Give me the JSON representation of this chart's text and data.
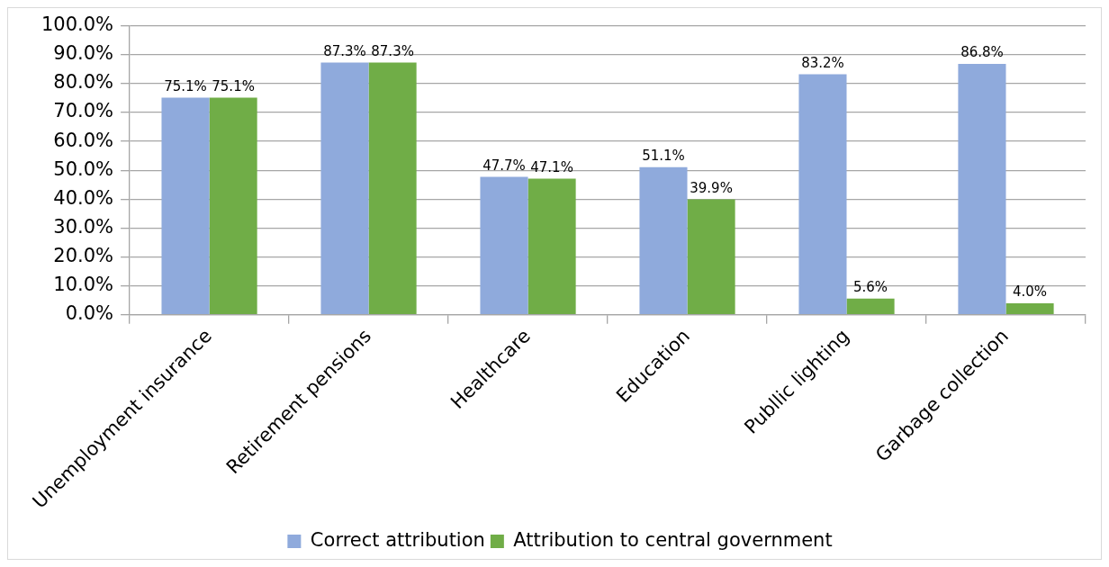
{
  "chart_data": {
    "type": "bar",
    "categories": [
      "Unemployment insurance",
      "Retirement pensions",
      "Healthcare",
      "Education",
      "Publlic lighting",
      "Garbage collection"
    ],
    "series": [
      {
        "name": "Correct attribution",
        "color": "#8faadc",
        "values": [
          75.1,
          87.3,
          47.7,
          51.1,
          83.2,
          86.8
        ],
        "value_labels": [
          "75.1%",
          "87.3%",
          "47.7%",
          "51.1%",
          "83.2%",
          "86.8%"
        ]
      },
      {
        "name": "Attribution to central government",
        "color": "#70ad47",
        "values": [
          75.1,
          87.3,
          47.1,
          39.9,
          5.6,
          4.0
        ],
        "value_labels": [
          "75.1%",
          "87.3%",
          "47.1%",
          "39.9%",
          "5.6%",
          "4.0%"
        ]
      }
    ],
    "ylim": [
      0,
      100
    ],
    "yticks": [
      {
        "value": 0,
        "label": "0.0%"
      },
      {
        "value": 10,
        "label": "10.0%"
      },
      {
        "value": 20,
        "label": "20.0%"
      },
      {
        "value": 30,
        "label": "30.0%"
      },
      {
        "value": 40,
        "label": "40.0%"
      },
      {
        "value": 50,
        "label": "50.0%"
      },
      {
        "value": 60,
        "label": "60.0%"
      },
      {
        "value": 70,
        "label": "70.0%"
      },
      {
        "value": 80,
        "label": "80.0%"
      },
      {
        "value": 90,
        "label": "90.0%"
      },
      {
        "value": 100,
        "label": "100.0%"
      }
    ],
    "grid": "y",
    "legend": "bottom"
  }
}
